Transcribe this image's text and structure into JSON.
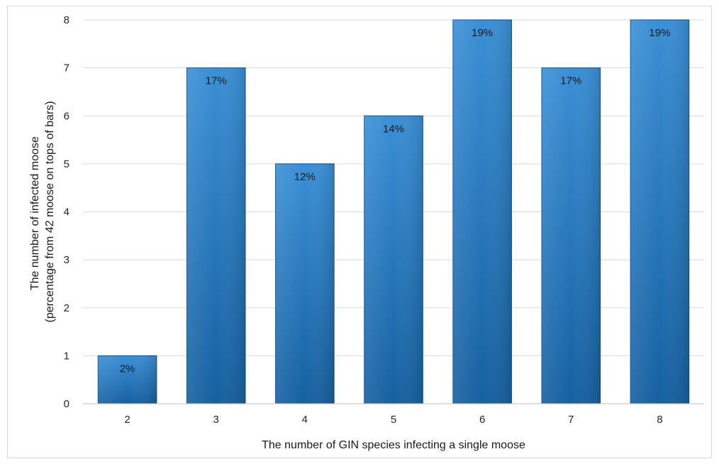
{
  "chart_data": {
    "type": "bar",
    "categories": [
      "2",
      "3",
      "4",
      "5",
      "6",
      "7",
      "8"
    ],
    "values": [
      1,
      7,
      5,
      6,
      8,
      7,
      8
    ],
    "data_labels": [
      "2%",
      "17%",
      "12%",
      "14%",
      "19%",
      "17%",
      "19%"
    ],
    "ylabel_line1": "The number of infected moose",
    "ylabel_line2": "(percentage from 42 moose on tops of bars)",
    "xlabel": "The number of GIN species infecting a single moose",
    "ylim": [
      0,
      8
    ],
    "yticks": [
      "0",
      "1",
      "2",
      "3",
      "4",
      "5",
      "6",
      "7",
      "8"
    ],
    "grid": true,
    "bar_color": "#1f6fb5"
  }
}
